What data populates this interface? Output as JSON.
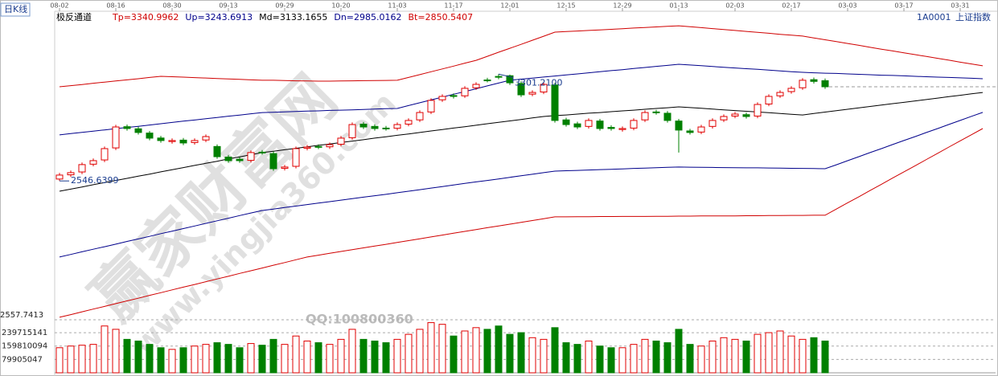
{
  "chart_data": {
    "type": "candlestick",
    "period_label": "日K线",
    "indicator": "极反通道",
    "symbol_code": "1A0001",
    "symbol_name": "上证指数",
    "up_color": "#e00000",
    "down_color": "#008000",
    "categories": [
      "08-02",
      null,
      null,
      null,
      null,
      "08-16",
      null,
      null,
      null,
      null,
      "08-30",
      null,
      null,
      null,
      null,
      "09-13",
      null,
      null,
      null,
      null,
      "09-29",
      null,
      null,
      null,
      null,
      "10-20",
      null,
      null,
      null,
      null,
      "11-03",
      null,
      null,
      null,
      null,
      "11-17",
      null,
      null,
      null,
      null,
      "12-01",
      null,
      null,
      null,
      null,
      "12-15",
      null,
      null,
      null,
      null,
      "12-29",
      null,
      null,
      null,
      null,
      "01-13",
      null,
      null,
      null,
      null,
      "02-03",
      null,
      null,
      null,
      null,
      "02-17",
      null,
      null,
      null,
      null,
      "03-03",
      null,
      null,
      null,
      null,
      "03-17",
      null,
      null,
      null,
      null,
      "03-31",
      null,
      null
    ],
    "open": [
      2560,
      2590,
      2610,
      2665,
      2695,
      2780,
      2930,
      2915,
      2885,
      2850,
      2825,
      2835,
      2818,
      2836,
      2790,
      2715,
      2700,
      2692,
      2750,
      2740,
      2636,
      2650,
      2778,
      2790,
      2788,
      2806,
      2852,
      2948,
      2932,
      2920,
      2919,
      2948,
      2978,
      3034,
      3120,
      3150,
      3148,
      3205,
      3260,
      3285,
      3290,
      3235,
      3160,
      3175,
      3225,
      2978,
      2950,
      2932,
      2970,
      2925,
      2910,
      2920,
      2978,
      3034,
      3025,
      2970,
      2900,
      2892,
      2932,
      2978,
      3005,
      3015,
      3005,
      3090,
      3148,
      3178,
      3205,
      3262,
      3255,
      null,
      null,
      null,
      null,
      null,
      null,
      null,
      null,
      null,
      null,
      null,
      null,
      null,
      null
    ],
    "high": [
      2603,
      2620,
      2677,
      2705,
      2790,
      2943,
      2945,
      2930,
      2900,
      2865,
      2847,
      2850,
      2847,
      2875,
      2805,
      2730,
      2715,
      2762,
      2765,
      2755,
      2660,
      2790,
      2801,
      2805,
      2818,
      2864,
      2960,
      2963,
      2947,
      2935,
      2960,
      2989,
      3045,
      3131,
      3159,
      3165,
      3216,
      3244,
      3275,
      3301.21,
      3298,
      3250,
      3187,
      3244,
      3240,
      2993,
      2965,
      2989,
      2985,
      2940,
      2932,
      2989,
      3045,
      3049,
      3040,
      2985,
      2915,
      2943,
      2989,
      3017,
      3034,
      3030,
      3102,
      3159,
      3187,
      3216,
      3273,
      3277,
      3270,
      null,
      null,
      null,
      null,
      null,
      null,
      null,
      null,
      null,
      null,
      null,
      null,
      null,
      null
    ],
    "low": [
      2546.6399,
      2575,
      2595,
      2650,
      2680,
      2765,
      2902,
      2874,
      2834,
      2817,
      2810,
      2800,
      2803,
      2821,
      2703,
      2675,
      2675,
      2677,
      2732,
      2618,
      2621,
      2635,
      2763,
      2771,
      2773,
      2791,
      2837,
      2913,
      2902,
      2902,
      2904,
      2933,
      2963,
      3019,
      3105,
      3129,
      3133,
      3190,
      3243,
      3265,
      3225,
      3140,
      3145,
      3160,
      2959,
      2930,
      2913,
      2917,
      2902,
      2902,
      2895,
      2905,
      2963,
      3015,
      2959,
      2747,
      2874,
      2877,
      2917,
      2963,
      2990,
      2987,
      2990,
      3075,
      3133,
      3163,
      3190,
      3235,
      3197,
      null,
      null,
      null,
      null,
      null,
      null,
      null,
      null,
      null,
      null,
      null,
      null,
      null,
      null
    ],
    "close": [
      2588,
      2605,
      2662,
      2690,
      2775,
      2928,
      2917,
      2889,
      2849,
      2832,
      2832,
      2815,
      2832,
      2860,
      2718,
      2690,
      2690,
      2747,
      2747,
      2633,
      2645,
      2775,
      2786,
      2786,
      2803,
      2849,
      2945,
      2928,
      2917,
      2917,
      2945,
      2974,
      3030,
      3116,
      3144,
      3144,
      3201,
      3229,
      3258,
      3280,
      3240,
      3155,
      3172,
      3229,
      2974,
      2945,
      2928,
      2974,
      2917,
      2917,
      2917,
      2974,
      3030,
      3030,
      2974,
      2906,
      2889,
      2928,
      2974,
      3002,
      3019,
      3002,
      3087,
      3144,
      3172,
      3201,
      3258,
      3250,
      3212,
      null,
      null,
      null,
      null,
      null,
      null,
      null,
      null,
      null,
      null,
      null,
      null,
      null,
      null
    ],
    "volume": [
      150000000,
      160000000,
      165000000,
      170000000,
      280000000,
      260000000,
      200000000,
      190000000,
      170000000,
      150000000,
      140000000,
      150000000,
      160000000,
      170000000,
      180000000,
      170000000,
      150000000,
      175000000,
      165000000,
      200000000,
      170000000,
      220000000,
      190000000,
      180000000,
      170000000,
      200000000,
      260000000,
      200000000,
      190000000,
      180000000,
      200000000,
      230000000,
      260000000,
      300000000,
      290000000,
      220000000,
      250000000,
      270000000,
      260000000,
      280000000,
      230000000,
      240000000,
      210000000,
      200000000,
      270000000,
      180000000,
      170000000,
      190000000,
      160000000,
      150000000,
      150000000,
      170000000,
      200000000,
      190000000,
      180000000,
      260000000,
      170000000,
      160000000,
      190000000,
      210000000,
      200000000,
      190000000,
      230000000,
      240000000,
      250000000,
      220000000,
      200000000,
      210000000,
      190000000,
      null,
      null,
      null,
      null,
      null,
      null,
      null,
      null,
      null,
      null,
      null,
      null,
      null,
      null
    ],
    "series": [
      {
        "name": "Tp=3340.9962",
        "color": "#d00000",
        "values": [
          3212,
          3220,
          3228,
          3237,
          3245,
          3253,
          3261,
          3269,
          3278,
          3286,
          3283,
          3280,
          3277,
          3274,
          3270,
          3267,
          3264,
          3261,
          3258,
          3258,
          3256,
          3254,
          3253,
          3252,
          3252,
          3253,
          3254,
          3255,
          3256,
          3257,
          3258,
          3278,
          3298,
          3318,
          3338,
          3358,
          3379,
          3399,
          3427,
          3456,
          3484,
          3512,
          3541,
          3569,
          3598,
          3602,
          3606,
          3610,
          3614,
          3618,
          3622,
          3627,
          3631,
          3635,
          3639,
          3643,
          3636,
          3630,
          3623,
          3617,
          3610,
          3603,
          3597,
          3590,
          3583,
          3577,
          3570,
          3557,
          3544,
          3531,
          3518,
          3505,
          3491,
          3478,
          3465,
          3452,
          3439,
          3426,
          3413,
          3400,
          3386,
          3373,
          3360
        ]
      },
      {
        "name": "Up=3243.6913",
        "color": "#00008b",
        "values": [
          2872,
          2881,
          2890,
          2898,
          2907,
          2916,
          2925,
          2933,
          2942,
          2951,
          2960,
          2969,
          2977,
          2986,
          2995,
          3004,
          3012,
          3021,
          3030,
          3032,
          3035,
          3037,
          3040,
          3042,
          3045,
          3047,
          3049,
          3052,
          3054,
          3057,
          3059,
          3079,
          3099,
          3119,
          3139,
          3159,
          3178,
          3198,
          3218,
          3238,
          3258,
          3266,
          3273,
          3281,
          3288,
          3296,
          3303,
          3311,
          3318,
          3326,
          3333,
          3341,
          3348,
          3356,
          3363,
          3371,
          3366,
          3361,
          3355,
          3350,
          3345,
          3340,
          3335,
          3330,
          3324,
          3319,
          3314,
          3311,
          3308,
          3306,
          3303,
          3300,
          3297,
          3294,
          3292,
          3289,
          3286,
          3283,
          3280,
          3278,
          3275,
          3272,
          3269
        ]
      },
      {
        "name": "Md=3133.1655",
        "color": "#000000",
        "values": [
          2474,
          2489,
          2504,
          2520,
          2535,
          2550,
          2565,
          2580,
          2595,
          2611,
          2626,
          2641,
          2656,
          2671,
          2686,
          2702,
          2717,
          2732,
          2747,
          2757,
          2767,
          2777,
          2788,
          2798,
          2808,
          2818,
          2828,
          2838,
          2849,
          2859,
          2869,
          2879,
          2889,
          2900,
          2910,
          2920,
          2930,
          2940,
          2951,
          2961,
          2971,
          2981,
          2992,
          3002,
          3008,
          3013,
          3019,
          3025,
          3030,
          3036,
          3042,
          3047,
          3053,
          3059,
          3064,
          3070,
          3065,
          3060,
          3054,
          3049,
          3044,
          3039,
          3034,
          3029,
          3023,
          3018,
          3013,
          3023,
          3033,
          3043,
          3053,
          3063,
          3073,
          3083,
          3093,
          3102,
          3112,
          3122,
          3132,
          3142,
          3152,
          3162,
          3172
        ]
      },
      {
        "name": "Dn=2985.0162",
        "color": "#00008b",
        "values": [
          2009,
          2027,
          2046,
          2064,
          2082,
          2100,
          2119,
          2137,
          2155,
          2174,
          2192,
          2210,
          2228,
          2247,
          2265,
          2283,
          2302,
          2320,
          2338,
          2348,
          2359,
          2369,
          2380,
          2390,
          2400,
          2411,
          2421,
          2432,
          2442,
          2452,
          2463,
          2474,
          2485,
          2496,
          2507,
          2518,
          2529,
          2540,
          2550,
          2561,
          2572,
          2583,
          2594,
          2605,
          2616,
          2619,
          2621,
          2624,
          2627,
          2629,
          2632,
          2635,
          2637,
          2640,
          2643,
          2645,
          2644,
          2643,
          2642,
          2641,
          2640,
          2639,
          2639,
          2638,
          2637,
          2636,
          2635,
          2634,
          2633,
          2661,
          2690,
          2718,
          2747,
          2775,
          2804,
          2832,
          2860,
          2889,
          2917,
          2946,
          2974,
          3003,
          3031
        ]
      },
      {
        "name": "Bt=2850.5407",
        "color": "#d00000",
        "values": [
          1583,
          1602,
          1622,
          1641,
          1660,
          1680,
          1699,
          1718,
          1738,
          1757,
          1777,
          1796,
          1815,
          1835,
          1854,
          1873,
          1893,
          1912,
          1931,
          1951,
          1970,
          1990,
          2009,
          2022,
          2035,
          2048,
          2061,
          2074,
          2086,
          2099,
          2112,
          2125,
          2138,
          2151,
          2164,
          2177,
          2190,
          2203,
          2216,
          2229,
          2241,
          2254,
          2267,
          2280,
          2293,
          2293,
          2294,
          2294,
          2295,
          2295,
          2296,
          2296,
          2296,
          2297,
          2297,
          2298,
          2298,
          2299,
          2299,
          2300,
          2300,
          2301,
          2301,
          2302,
          2302,
          2303,
          2303,
          2304,
          2304,
          2348,
          2392,
          2435,
          2479,
          2523,
          2567,
          2611,
          2654,
          2698,
          2742,
          2786,
          2830,
          2873,
          2917
        ]
      }
    ],
    "ylim": [
      1560,
      3740
    ],
    "volume_lim": [
      0,
      346000000
    ],
    "volume_ticks": [
      79905047,
      159810094,
      239715141
    ],
    "price_floor_label": "2557.7413",
    "high_annotation": "3301.2100",
    "low_annotation": "2546.6399",
    "watermark": {
      "site_name": "赢家财富网",
      "url": "www.yingjia360.com",
      "qq": "QQ:100800360"
    }
  }
}
